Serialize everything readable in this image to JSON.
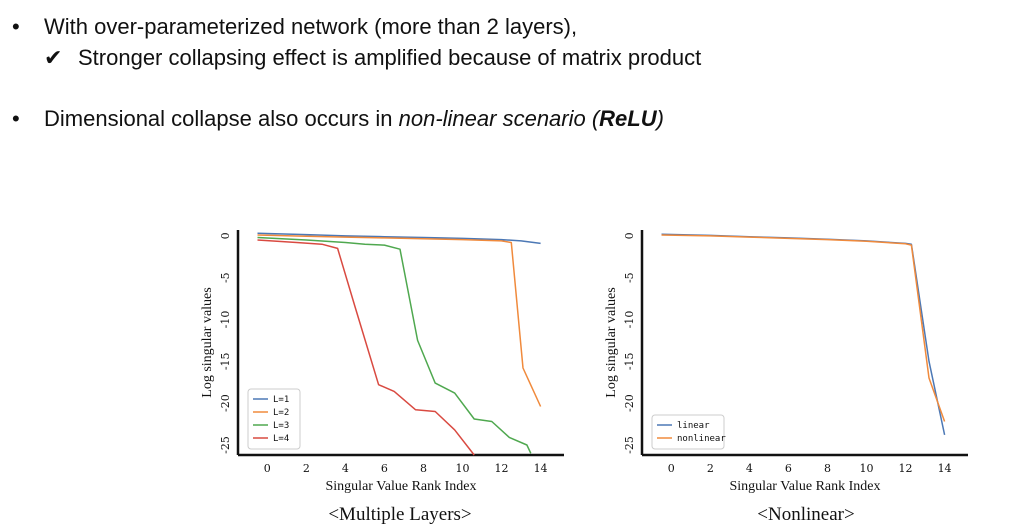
{
  "bullets": {
    "b1_marker": "•",
    "b1_text": "With over-parameterized network (more than 2 layers),",
    "b1_sub_marker": "✔",
    "b1_sub_text": "Stronger collapsing effect is amplified because of matrix product",
    "b2_marker": "•",
    "b2_text_plain": "Dimensional collapse also occurs in ",
    "b2_text_italic": "non-linear scenario (",
    "b2_text_bold": "ReLU",
    "b2_text_close": ")"
  },
  "chart_data": [
    {
      "type": "line",
      "caption": "<Multiple Layers>",
      "xlabel": "Singular Value Rank Index",
      "ylabel": "Log singular values",
      "xlim": [
        -1.5,
        15.2
      ],
      "ylim": [
        -26.2,
        0.7
      ],
      "xticks": [
        0,
        2,
        4,
        6,
        8,
        10,
        12,
        14
      ],
      "yticks": [
        0,
        -5,
        -10,
        -15,
        -20,
        -25
      ],
      "legend_position": "lower-left",
      "series": [
        {
          "name": "L=1",
          "color": "#4c78b5",
          "x": [
            -0.5,
            2,
            4,
            6,
            8,
            10,
            12,
            13,
            14
          ],
          "y": [
            0.3,
            0.15,
            0,
            -0.1,
            -0.2,
            -0.3,
            -0.45,
            -0.6,
            -0.9
          ]
        },
        {
          "name": "L=2",
          "color": "#f08a3c",
          "x": [
            -0.5,
            2,
            4,
            6,
            8,
            10,
            12,
            12.5,
            13.1,
            14
          ],
          "y": [
            0.1,
            -0.05,
            -0.15,
            -0.25,
            -0.35,
            -0.45,
            -0.6,
            -0.8,
            -15.8,
            -20.4
          ]
        },
        {
          "name": "L=3",
          "color": "#4fa84f",
          "x": [
            -0.5,
            2,
            4,
            5,
            6,
            6.8,
            7.7,
            8.6,
            9.6,
            10.6,
            11.5,
            12.4,
            13.3,
            13.5
          ],
          "y": [
            -0.2,
            -0.5,
            -0.8,
            -1.0,
            -1.1,
            -1.6,
            -12.5,
            -17.6,
            -18.8,
            -21.9,
            -22.2,
            -24.1,
            -25.0,
            -26.0
          ]
        },
        {
          "name": "L=4",
          "color": "#d94a41",
          "x": [
            -0.5,
            1.5,
            2.8,
            3.6,
            4.5,
            5.7,
            6.5,
            7.6,
            8.6,
            9.6,
            10.6
          ],
          "y": [
            -0.5,
            -0.8,
            -1.0,
            -1.5,
            -8.5,
            -17.8,
            -18.6,
            -20.8,
            -21.0,
            -23.2,
            -26.2
          ]
        }
      ]
    },
    {
      "type": "line",
      "caption": "<Nonlinear>",
      "xlabel": "Singular Value Rank Index",
      "ylabel": "Log singular values",
      "xlim": [
        -1.5,
        15.2
      ],
      "ylim": [
        -26.2,
        0.7
      ],
      "xticks": [
        0,
        2,
        4,
        6,
        8,
        10,
        12,
        14
      ],
      "yticks": [
        0,
        -5,
        -10,
        -15,
        -20,
        -25
      ],
      "legend_position": "lower-left",
      "series": [
        {
          "name": "linear",
          "color": "#4c78b5",
          "x": [
            -0.5,
            2,
            4,
            6,
            8,
            10,
            12,
            12.3,
            13.2,
            14
          ],
          "y": [
            0.2,
            0.05,
            -0.1,
            -0.25,
            -0.4,
            -0.6,
            -0.9,
            -1.0,
            -15.0,
            -23.8
          ]
        },
        {
          "name": "nonlinear",
          "color": "#f08a3c",
          "x": [
            -0.5,
            2,
            4,
            6,
            8,
            10,
            12,
            12.3,
            13.2,
            14
          ],
          "y": [
            0.1,
            0,
            -0.15,
            -0.3,
            -0.45,
            -0.65,
            -0.95,
            -1.1,
            -17.0,
            -22.2
          ]
        }
      ]
    }
  ]
}
